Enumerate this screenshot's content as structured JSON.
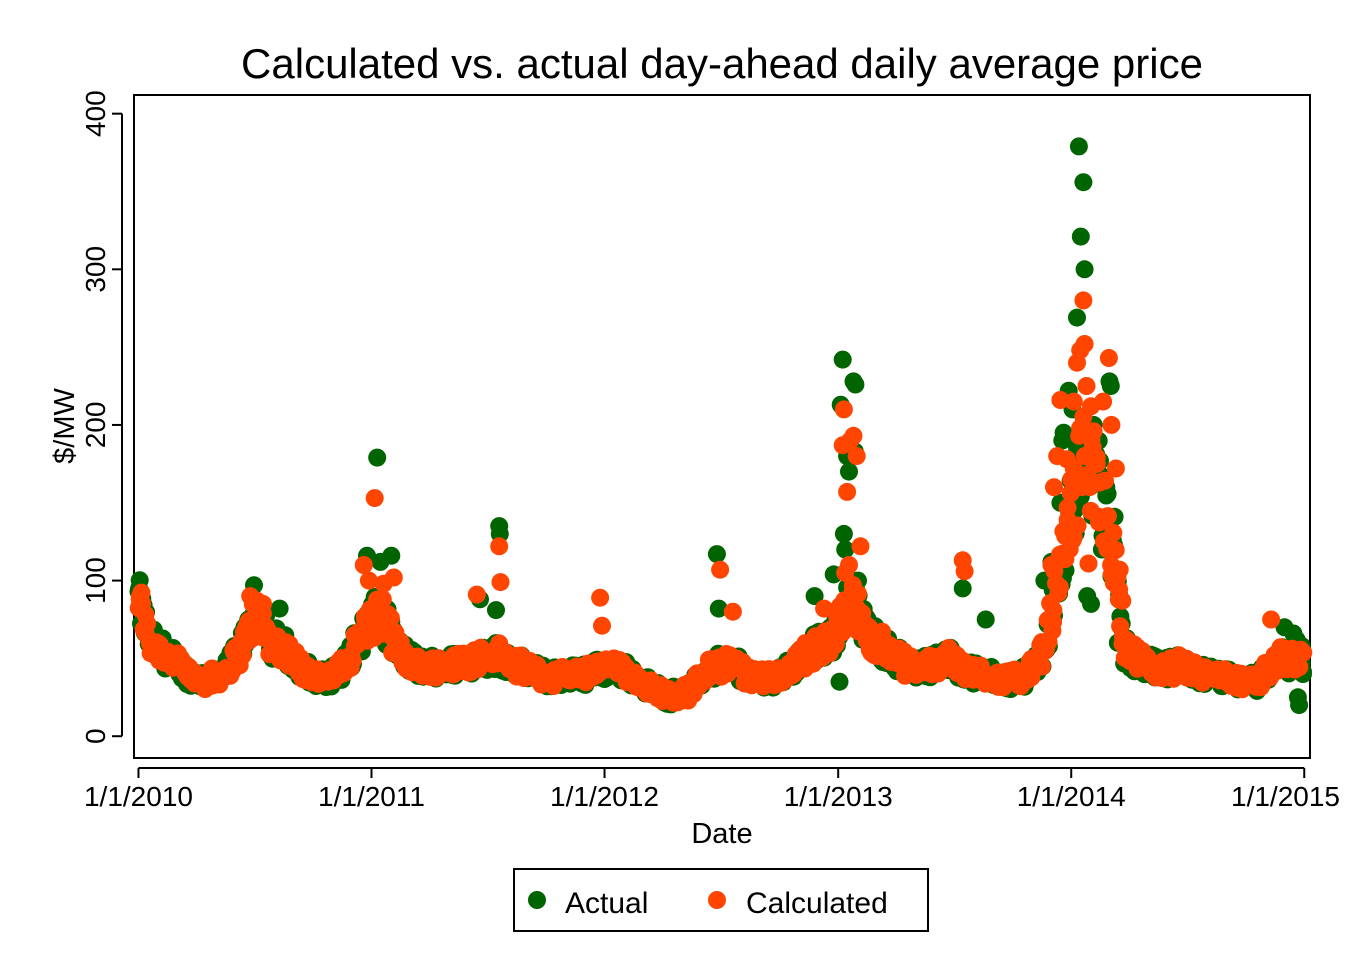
{
  "chart_data": {
    "type": "scatter",
    "title": "Calculated vs. actual day-ahead daily average price",
    "xlabel": "Date",
    "ylabel": "$/MW",
    "x_tick_labels": [
      "1/1/2010",
      "1/1/2011",
      "1/1/2012",
      "1/1/2013",
      "1/1/2014",
      "1/1/2015"
    ],
    "x_ticks": [
      "2010-01-01",
      "2011-01-01",
      "2012-01-01",
      "2013-01-01",
      "2014-01-01",
      "2015-01-01"
    ],
    "xlim": [
      "2009-12-25",
      "2015-01-10"
    ],
    "y_ticks": [
      0,
      100,
      200,
      300,
      400
    ],
    "ylim": [
      -14,
      412
    ],
    "grid": false,
    "legend_position": "bottom",
    "colors": {
      "actual": "#006400",
      "calculated": "#ff4500"
    },
    "baseline": [
      [
        "2010-01-01",
        88
      ],
      [
        "2010-01-20",
        60
      ],
      [
        "2010-02-15",
        52
      ],
      [
        "2010-03-20",
        40
      ],
      [
        "2010-04-15",
        36
      ],
      [
        "2010-05-15",
        40
      ],
      [
        "2010-06-10",
        55
      ],
      [
        "2010-07-05",
        80
      ],
      [
        "2010-07-25",
        62
      ],
      [
        "2010-08-20",
        55
      ],
      [
        "2010-09-20",
        42
      ],
      [
        "2010-10-20",
        36
      ],
      [
        "2010-11-20",
        45
      ],
      [
        "2010-12-20",
        68
      ],
      [
        "2011-01-15",
        80
      ],
      [
        "2011-02-10",
        55
      ],
      [
        "2011-03-15",
        45
      ],
      [
        "2011-05-01",
        45
      ],
      [
        "2011-06-15",
        50
      ],
      [
        "2011-07-20",
        52
      ],
      [
        "2011-08-20",
        45
      ],
      [
        "2011-10-01",
        38
      ],
      [
        "2011-12-01",
        40
      ],
      [
        "2012-01-10",
        45
      ],
      [
        "2012-02-10",
        40
      ],
      [
        "2012-03-10",
        32
      ],
      [
        "2012-04-10",
        26
      ],
      [
        "2012-05-10",
        28
      ],
      [
        "2012-06-10",
        42
      ],
      [
        "2012-07-15",
        48
      ],
      [
        "2012-08-15",
        38
      ],
      [
        "2012-10-01",
        38
      ],
      [
        "2012-11-20",
        55
      ],
      [
        "2012-12-20",
        60
      ],
      [
        "2013-01-20",
        90
      ],
      [
        "2013-02-15",
        65
      ],
      [
        "2013-03-20",
        55
      ],
      [
        "2013-04-20",
        45
      ],
      [
        "2013-05-20",
        45
      ],
      [
        "2013-06-20",
        50
      ],
      [
        "2013-07-20",
        42
      ],
      [
        "2013-08-20",
        40
      ],
      [
        "2013-09-20",
        36
      ],
      [
        "2013-10-20",
        38
      ],
      [
        "2013-11-20",
        55
      ],
      [
        "2013-12-20",
        120
      ],
      [
        "2014-01-20",
        180
      ],
      [
        "2014-02-15",
        160
      ],
      [
        "2014-03-10",
        110
      ],
      [
        "2014-03-25",
        55
      ],
      [
        "2014-04-20",
        48
      ],
      [
        "2014-05-20",
        42
      ],
      [
        "2014-06-20",
        45
      ],
      [
        "2014-07-20",
        40
      ],
      [
        "2014-08-20",
        38
      ],
      [
        "2014-09-20",
        35
      ],
      [
        "2014-10-20",
        35
      ],
      [
        "2014-11-20",
        50
      ],
      [
        "2014-12-31",
        48
      ]
    ],
    "series": [
      {
        "name": "Actual",
        "points": [
          [
            "2010-01-02",
            95
          ],
          [
            "2010-01-05",
            85
          ],
          [
            "2010-07-01",
            97
          ],
          [
            "2010-08-10",
            82
          ],
          [
            "2010-12-25",
            116
          ],
          [
            "2011-01-10",
            179
          ],
          [
            "2011-01-15",
            112
          ],
          [
            "2011-02-01",
            116
          ],
          [
            "2011-06-20",
            88
          ],
          [
            "2011-07-15",
            81
          ],
          [
            "2011-07-20",
            135
          ],
          [
            "2011-07-21",
            130
          ],
          [
            "2012-06-25",
            117
          ],
          [
            "2012-06-28",
            82
          ],
          [
            "2012-11-25",
            90
          ],
          [
            "2012-12-25",
            104
          ],
          [
            "2013-01-08",
            242
          ],
          [
            "2013-01-05",
            213
          ],
          [
            "2013-01-15",
            180
          ],
          [
            "2013-01-18",
            170
          ],
          [
            "2013-01-25",
            228
          ],
          [
            "2013-01-28",
            226
          ],
          [
            "2013-01-27",
            183
          ],
          [
            "2013-02-01",
            100
          ],
          [
            "2013-01-10",
            130
          ],
          [
            "2013-01-12",
            120
          ],
          [
            "2013-01-03",
            35
          ],
          [
            "2013-07-15",
            95
          ],
          [
            "2013-08-20",
            75
          ],
          [
            "2013-11-20",
            100
          ],
          [
            "2013-12-01",
            112
          ],
          [
            "2013-12-15",
            150
          ],
          [
            "2013-12-18",
            190
          ],
          [
            "2013-12-20",
            195
          ],
          [
            "2013-12-28",
            222
          ],
          [
            "2014-01-03",
            210
          ],
          [
            "2014-01-07",
            150
          ],
          [
            "2014-01-10",
            269
          ],
          [
            "2014-01-13",
            379
          ],
          [
            "2014-01-16",
            321
          ],
          [
            "2014-01-20",
            356
          ],
          [
            "2014-01-22",
            300
          ],
          [
            "2014-01-26",
            90
          ],
          [
            "2014-02-01",
            85
          ],
          [
            "2014-02-05",
            200
          ],
          [
            "2014-02-10",
            170
          ],
          [
            "2014-02-18",
            120
          ],
          [
            "2014-02-25",
            160
          ],
          [
            "2014-03-02",
            228
          ],
          [
            "2014-03-04",
            225
          ],
          [
            "2014-03-10",
            141
          ],
          [
            "2014-03-15",
            60
          ],
          [
            "2014-12-01",
            70
          ],
          [
            "2014-12-15",
            66
          ],
          [
            "2014-12-20",
            62
          ],
          [
            "2014-12-22",
            25
          ],
          [
            "2014-12-24",
            20
          ],
          [
            "2014-12-28",
            58
          ],
          [
            "2014-12-30",
            40
          ]
        ]
      },
      {
        "name": "Calculated",
        "points": [
          [
            "2010-01-03",
            88
          ],
          [
            "2010-06-25",
            90
          ],
          [
            "2010-07-15",
            85
          ],
          [
            "2010-12-20",
            110
          ],
          [
            "2010-12-28",
            100
          ],
          [
            "2011-01-06",
            153
          ],
          [
            "2011-01-20",
            98
          ],
          [
            "2011-02-05",
            102
          ],
          [
            "2011-06-15",
            91
          ],
          [
            "2011-07-20",
            122
          ],
          [
            "2011-07-22",
            99
          ],
          [
            "2011-12-25",
            89
          ],
          [
            "2011-12-28",
            71
          ],
          [
            "2012-06-30",
            107
          ],
          [
            "2012-07-20",
            80
          ],
          [
            "2012-12-10",
            82
          ],
          [
            "2013-01-10",
            210
          ],
          [
            "2013-01-08",
            187
          ],
          [
            "2013-01-15",
            157
          ],
          [
            "2013-01-20",
            190
          ],
          [
            "2013-01-25",
            193
          ],
          [
            "2013-01-30",
            180
          ],
          [
            "2013-02-05",
            122
          ],
          [
            "2013-01-12",
            105
          ],
          [
            "2013-01-18",
            110
          ],
          [
            "2013-07-15",
            113
          ],
          [
            "2013-07-18",
            106
          ],
          [
            "2013-12-01",
            110
          ],
          [
            "2013-12-05",
            160
          ],
          [
            "2013-12-10",
            180
          ],
          [
            "2013-12-15",
            216
          ],
          [
            "2013-12-25",
            178
          ],
          [
            "2014-01-01",
            165
          ],
          [
            "2014-01-05",
            215
          ],
          [
            "2014-01-10",
            240
          ],
          [
            "2014-01-15",
            248
          ],
          [
            "2014-01-20",
            280
          ],
          [
            "2014-01-22",
            252
          ],
          [
            "2014-01-25",
            225
          ],
          [
            "2014-02-01",
            212
          ],
          [
            "2014-02-05",
            196
          ],
          [
            "2014-02-10",
            175
          ],
          [
            "2014-02-14",
            163
          ],
          [
            "2014-02-20",
            215
          ],
          [
            "2014-03-01",
            243
          ],
          [
            "2014-03-05",
            200
          ],
          [
            "2014-03-12",
            172
          ],
          [
            "2014-03-18",
            107
          ],
          [
            "2014-03-22",
            87
          ],
          [
            "2014-01-28",
            111
          ],
          [
            "2014-11-10",
            75
          ]
        ]
      }
    ]
  }
}
